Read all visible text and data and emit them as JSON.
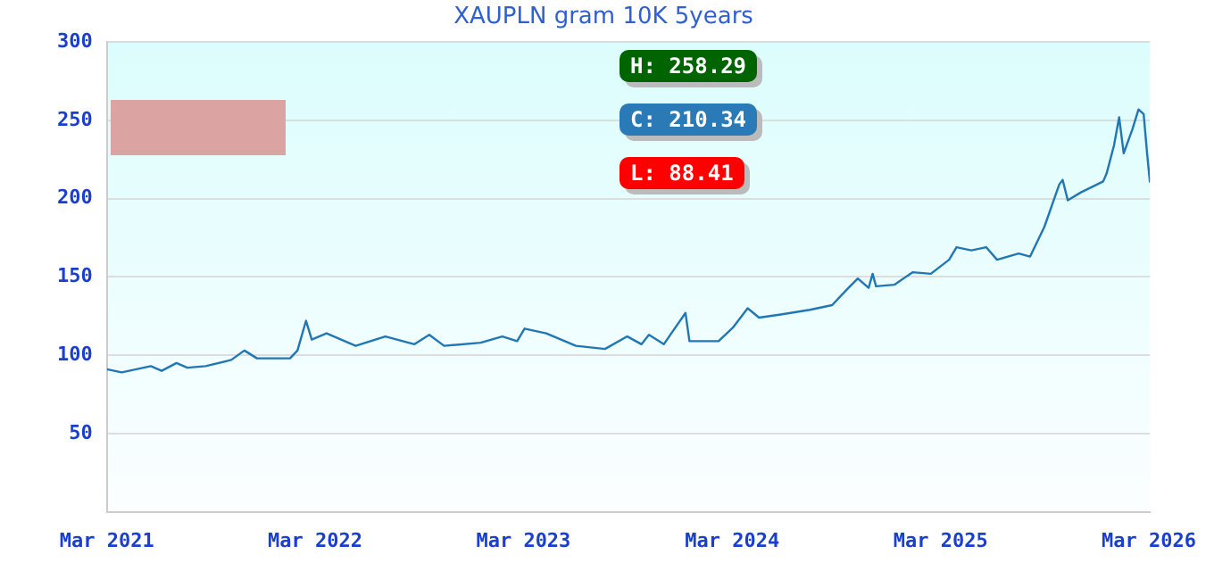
{
  "chart_data": {
    "type": "line",
    "title": "XAUPLN gram 10K 5years",
    "annotations": [
      "H: 258.29",
      "C: 210.34",
      "L: 88.41"
    ],
    "series": [
      {
        "color": "#2077b4",
        "x": [
          "2021-03-01",
          "2021-03-27",
          "2021-05-17",
          "2021-06-05",
          "2021-07-01",
          "2021-07-20",
          "2021-08-21",
          "2021-10-05",
          "2021-10-28",
          "2021-11-19",
          "2022-01-16",
          "2022-01-29",
          "2022-02-13",
          "2022-02-23",
          "2022-03-21",
          "2022-05-11",
          "2022-07-02",
          "2022-08-22",
          "2022-09-17",
          "2022-10-13",
          "2022-12-16",
          "2023-01-23",
          "2023-02-18",
          "2023-03-03",
          "2023-04-10",
          "2023-06-01",
          "2023-07-22",
          "2023-08-30",
          "2023-09-24",
          "2023-10-07",
          "2023-11-02",
          "2023-12-10",
          "2023-12-17",
          "2024-02-06",
          "2024-03-03",
          "2024-03-28",
          "2024-04-17",
          "2024-05-25",
          "2024-07-15",
          "2024-08-23",
          "2024-09-18",
          "2024-10-07",
          "2024-10-26",
          "2024-11-02",
          "2024-11-08",
          "2024-12-10",
          "2025-01-11",
          "2025-02-12",
          "2025-03-16",
          "2025-03-29",
          "2025-04-24",
          "2025-05-20",
          "2025-06-08",
          "2025-07-16",
          "2025-08-05",
          "2025-08-30",
          "2025-09-25",
          "2025-10-01",
          "2025-10-10",
          "2025-11-02",
          "2025-12-11",
          "2025-12-17",
          "2025-12-30",
          "2026-01-08",
          "2026-01-16",
          "2026-01-31",
          "2026-02-11",
          "2026-02-20",
          "2026-02-26",
          "2026-03-03"
        ],
        "values": [
          91,
          89,
          93,
          90,
          95,
          92,
          93,
          97,
          103,
          98,
          98,
          103,
          122,
          110,
          114,
          106,
          112,
          107,
          113,
          106,
          108,
          112,
          109,
          117,
          114,
          106,
          104,
          112,
          107,
          113,
          107,
          127,
          109,
          109,
          118,
          130,
          124,
          126,
          129,
          132,
          142,
          149,
          143,
          152,
          144,
          145,
          153,
          152,
          161,
          169,
          167,
          169,
          161,
          165,
          163,
          182,
          209,
          212,
          199,
          204,
          211,
          216,
          234,
          252,
          229,
          244,
          257,
          254,
          229,
          210.34
        ]
      }
    ],
    "xlim": [
      "2021-03-01",
      "2026-03-03"
    ],
    "xticks": [
      {
        "value": "2021-03-01",
        "label": "Mar 2021"
      },
      {
        "value": "2022-03-01",
        "label": "Mar 2022"
      },
      {
        "value": "2023-03-01",
        "label": "Mar 2023"
      },
      {
        "value": "2024-03-01",
        "label": "Mar 2024"
      },
      {
        "value": "2025-03-01",
        "label": "Mar 2025"
      },
      {
        "value": "2026-03-01",
        "label": "Mar 2026"
      }
    ],
    "ylim": [
      0,
      300
    ],
    "yticks": [
      50,
      100,
      150,
      200,
      250,
      300
    ],
    "grid": "y",
    "marker": "none",
    "line_style": "solid",
    "legend": false
  }
}
